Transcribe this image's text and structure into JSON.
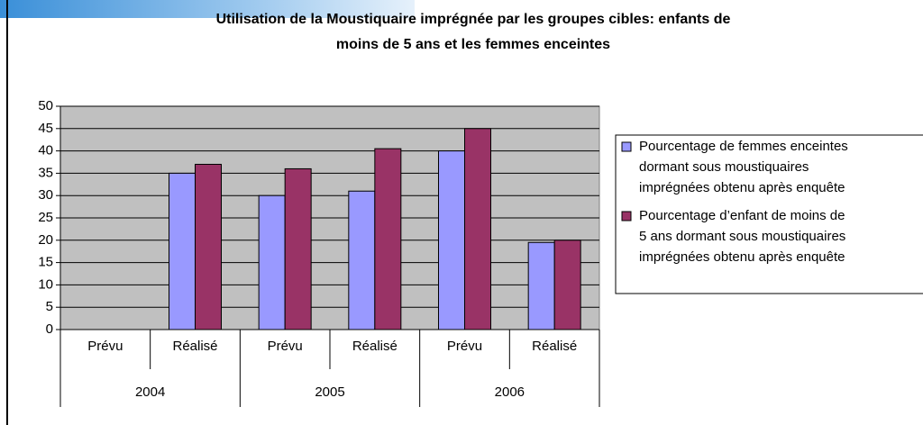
{
  "chart_data": {
    "type": "bar",
    "title_lines": [
      "Utilisation de la Moustiquaire imprégnée par les groupes cibles: enfants de",
      "moins de 5 ans et les femmes enceintes"
    ],
    "categories": [
      "Prévu",
      "Réalisé",
      "Prévu",
      "Réalisé",
      "Prévu",
      "Réalisé"
    ],
    "category_groups": [
      "2004",
      "2005",
      "2006"
    ],
    "series": [
      {
        "name": "Pourcentage de femmes enceintes dormant sous moustiquaires imprégnées obtenu après enquête",
        "color": "#9999ff",
        "values": [
          null,
          35,
          30,
          31,
          40,
          19.5
        ]
      },
      {
        "name": "Pourcentage d’enfant de moins de 5 ans dormant sous moustiquaires imprégnées obtenu après enquête",
        "color": "#993366",
        "values": [
          null,
          37,
          36,
          40.5,
          45,
          20
        ]
      }
    ],
    "ylim": [
      0,
      50
    ],
    "yticks": [
      0,
      5,
      10,
      15,
      20,
      25,
      30,
      35,
      40,
      45,
      50
    ],
    "grid": true,
    "legend": "right"
  }
}
